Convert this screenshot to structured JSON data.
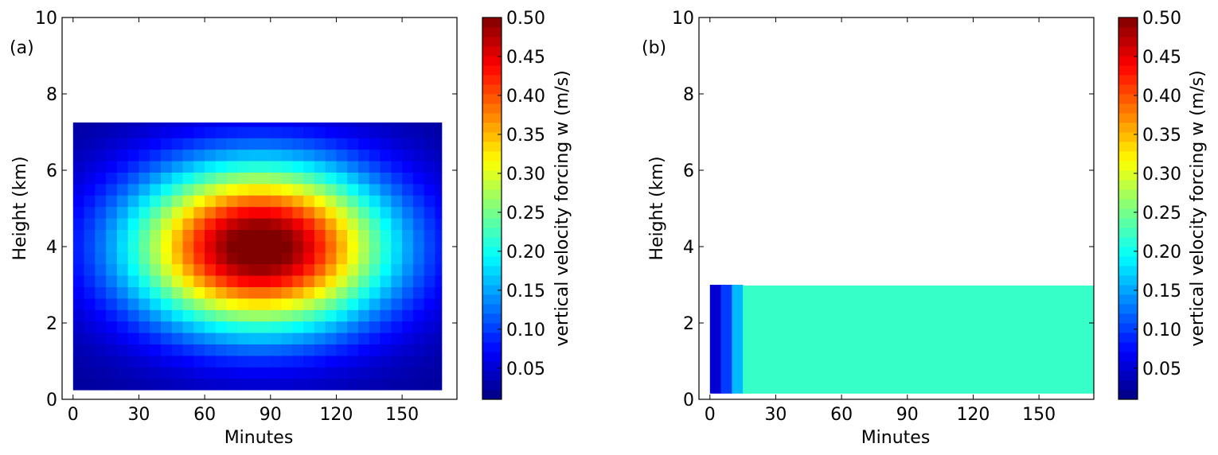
{
  "chart_data": [
    {
      "type": "heatmap",
      "panel_label": "(a)",
      "xlabel": "Minutes",
      "ylabel": "Height (km)",
      "xlim": [
        -5,
        175
      ],
      "ylim": [
        0,
        10
      ],
      "xticks": [
        "0",
        "30",
        "60",
        "90",
        "120",
        "150"
      ],
      "xtick_values": [
        0,
        30,
        60,
        90,
        120,
        150
      ],
      "yticks": [
        "0",
        "2",
        "4",
        "6",
        "8",
        "10"
      ],
      "ytick_values": [
        0,
        2,
        4,
        6,
        8,
        10
      ],
      "field": {
        "description_free": true,
        "shape": "gaussian",
        "x_range": [
          0,
          168
        ],
        "y_range": [
          0.25,
          7.25
        ],
        "x_step": 5,
        "y_step": 0.3,
        "peak_value": 0.5,
        "peak_x": 85,
        "peak_y": 4.0,
        "edge_value": 0.02
      },
      "colorbar": {
        "label": "vertical velocity forcing w (m/s)",
        "range": [
          0.01,
          0.5
        ],
        "ticks": [
          "0.05",
          "0.10",
          "0.15",
          "0.20",
          "0.25",
          "0.30",
          "0.35",
          "0.40",
          "0.45",
          "0.50"
        ],
        "tick_values": [
          0.05,
          0.1,
          0.15,
          0.2,
          0.25,
          0.3,
          0.35,
          0.4,
          0.45,
          0.5
        ]
      }
    },
    {
      "type": "heatmap",
      "panel_label": "(b)",
      "xlabel": "Minutes",
      "ylabel": "Height (km)",
      "xlim": [
        -5,
        175
      ],
      "ylim": [
        0,
        10
      ],
      "xticks": [
        "0",
        "30",
        "60",
        "90",
        "120",
        "150"
      ],
      "xtick_values": [
        0,
        30,
        60,
        90,
        120,
        150
      ],
      "yticks": [
        "0",
        "2",
        "4",
        "6",
        "8",
        "10"
      ],
      "ytick_values": [
        0,
        2,
        4,
        6,
        8,
        10
      ],
      "blocks": [
        {
          "x0": 0,
          "x1": 5,
          "y0": 0.15,
          "y1": 3.0,
          "value": 0.05
        },
        {
          "x0": 5,
          "x1": 10,
          "y0": 0.15,
          "y1": 3.0,
          "value": 0.1
        },
        {
          "x0": 10,
          "x1": 15,
          "y0": 0.15,
          "y1": 3.0,
          "value": 0.16
        },
        {
          "x0": 15,
          "x1": 175,
          "y0": 0.15,
          "y1": 2.98,
          "value": 0.22
        }
      ],
      "colorbar": {
        "label": "vertical velocity forcing w (m/s)",
        "range": [
          0.01,
          0.5
        ],
        "ticks": [
          "0.05",
          "0.10",
          "0.15",
          "0.20",
          "0.25",
          "0.30",
          "0.35",
          "0.40",
          "0.45",
          "0.50"
        ],
        "tick_values": [
          0.05,
          0.1,
          0.15,
          0.2,
          0.25,
          0.3,
          0.35,
          0.4,
          0.45,
          0.5
        ]
      }
    }
  ]
}
